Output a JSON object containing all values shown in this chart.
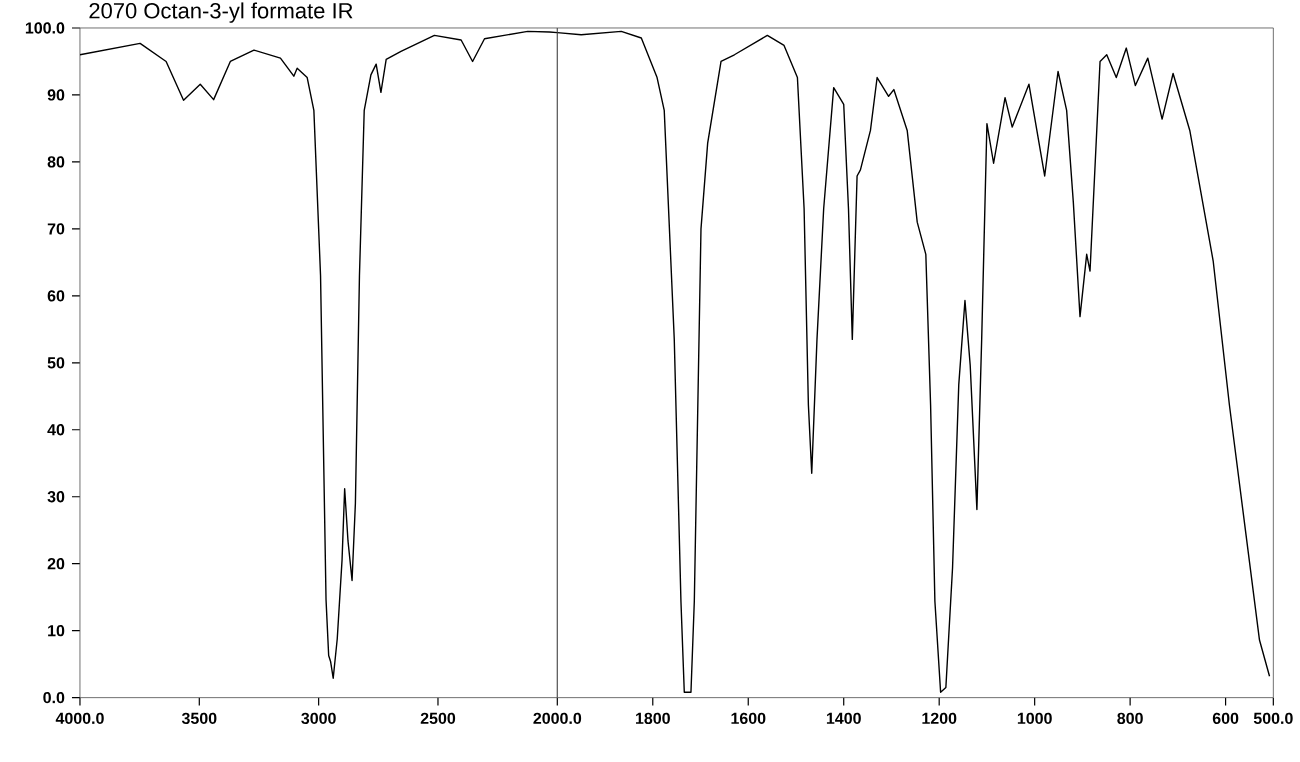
{
  "chart_data": [
    {
      "type": "line",
      "title": "2070 Octan-3-yl formate IR",
      "xlim": [
        4000,
        2000
      ],
      "ylim": [
        0,
        100
      ],
      "xticks": [
        {
          "value": 4000,
          "label": "4000.0"
        },
        3500,
        3000,
        2500,
        {
          "value": 2000,
          "label": "2000.0"
        }
      ],
      "yticks": [
        {
          "value": 0,
          "label": "0.0"
        },
        10,
        20,
        30,
        40,
        50,
        60,
        70,
        80,
        90,
        {
          "value": 100,
          "label": "100.0"
        }
      ],
      "marker": "none",
      "line_style": "solid",
      "series": [
        {
          "color": "#000000",
          "x": [
            4000,
            3748,
            3639,
            3566,
            3496,
            3440,
            3370,
            3271,
            3160,
            3104,
            3090,
            3048,
            3020,
            2992,
            2969,
            2958,
            2950,
            2939,
            2922,
            2902,
            2891,
            2877,
            2860,
            2846,
            2829,
            2809,
            2781,
            2759,
            2739,
            2717,
            2655,
            2515,
            2403,
            2355,
            2305,
            2124,
            2033,
            2000
          ],
          "values": [
            96,
            97.7,
            95,
            89.2,
            91.6,
            89.3,
            95,
            96.7,
            95.5,
            92.8,
            94,
            92.6,
            87.7,
            63,
            14.6,
            6.3,
            5.4,
            2.9,
            8.8,
            20.5,
            31.2,
            23.4,
            17.5,
            29,
            63,
            87.7,
            93,
            94.6,
            90.4,
            95.3,
            96.5,
            98.9,
            98.2,
            95,
            98.4,
            99.5,
            99.4,
            99.3
          ]
        }
      ]
    },
    {
      "type": "line",
      "xlim": [
        2000,
        500
      ],
      "ylim": [
        0,
        100
      ],
      "tick_labels": "x",
      "xticks": [
        1800,
        1600,
        1400,
        1200,
        1000,
        800,
        600,
        {
          "value": 500,
          "label": "500.0"
        }
      ],
      "marker": "none",
      "line_style": "solid",
      "series": [
        {
          "color": "#000000",
          "x": [
            2000,
            1950,
            1866,
            1824,
            1791,
            1776,
            1755,
            1741,
            1734,
            1720,
            1713,
            1699,
            1685,
            1657,
            1629,
            1560,
            1525,
            1497,
            1483,
            1474,
            1467,
            1456,
            1442,
            1421,
            1400,
            1390,
            1382,
            1372,
            1365,
            1344,
            1330,
            1306,
            1295,
            1267,
            1246,
            1228,
            1218,
            1209,
            1197,
            1186,
            1172,
            1159,
            1146,
            1135,
            1121,
            1111,
            1100,
            1086,
            1062,
            1047,
            1012,
            979,
            951,
            933,
            919,
            905,
            891,
            884,
            863,
            849,
            829,
            808,
            789,
            763,
            733,
            710,
            675,
            626,
            592,
            557,
            529,
            508
          ],
          "values": [
            99.3,
            99,
            99.5,
            98.5,
            92.6,
            87.7,
            53.5,
            14.4,
            0.8,
            0.8,
            14.4,
            70,
            82.8,
            95,
            96,
            98.9,
            97.4,
            92.6,
            73,
            43.7,
            33.5,
            53.5,
            73,
            91.1,
            88.6,
            73,
            53.5,
            77.9,
            78.8,
            84.7,
            92.6,
            89.8,
            90.8,
            84.7,
            71,
            66.2,
            43.7,
            14.4,
            0.8,
            1.5,
            19.4,
            46.7,
            59.3,
            49.6,
            28.1,
            53.5,
            85.7,
            79.8,
            89.6,
            85.2,
            91.6,
            77.9,
            93.5,
            87.7,
            74,
            56.9,
            66.2,
            63.7,
            95,
            96,
            92.6,
            97,
            91.4,
            95.5,
            86.4,
            93.2,
            84.7,
            65.2,
            43.7,
            24.2,
            8.6,
            3.2
          ]
        }
      ]
    }
  ]
}
